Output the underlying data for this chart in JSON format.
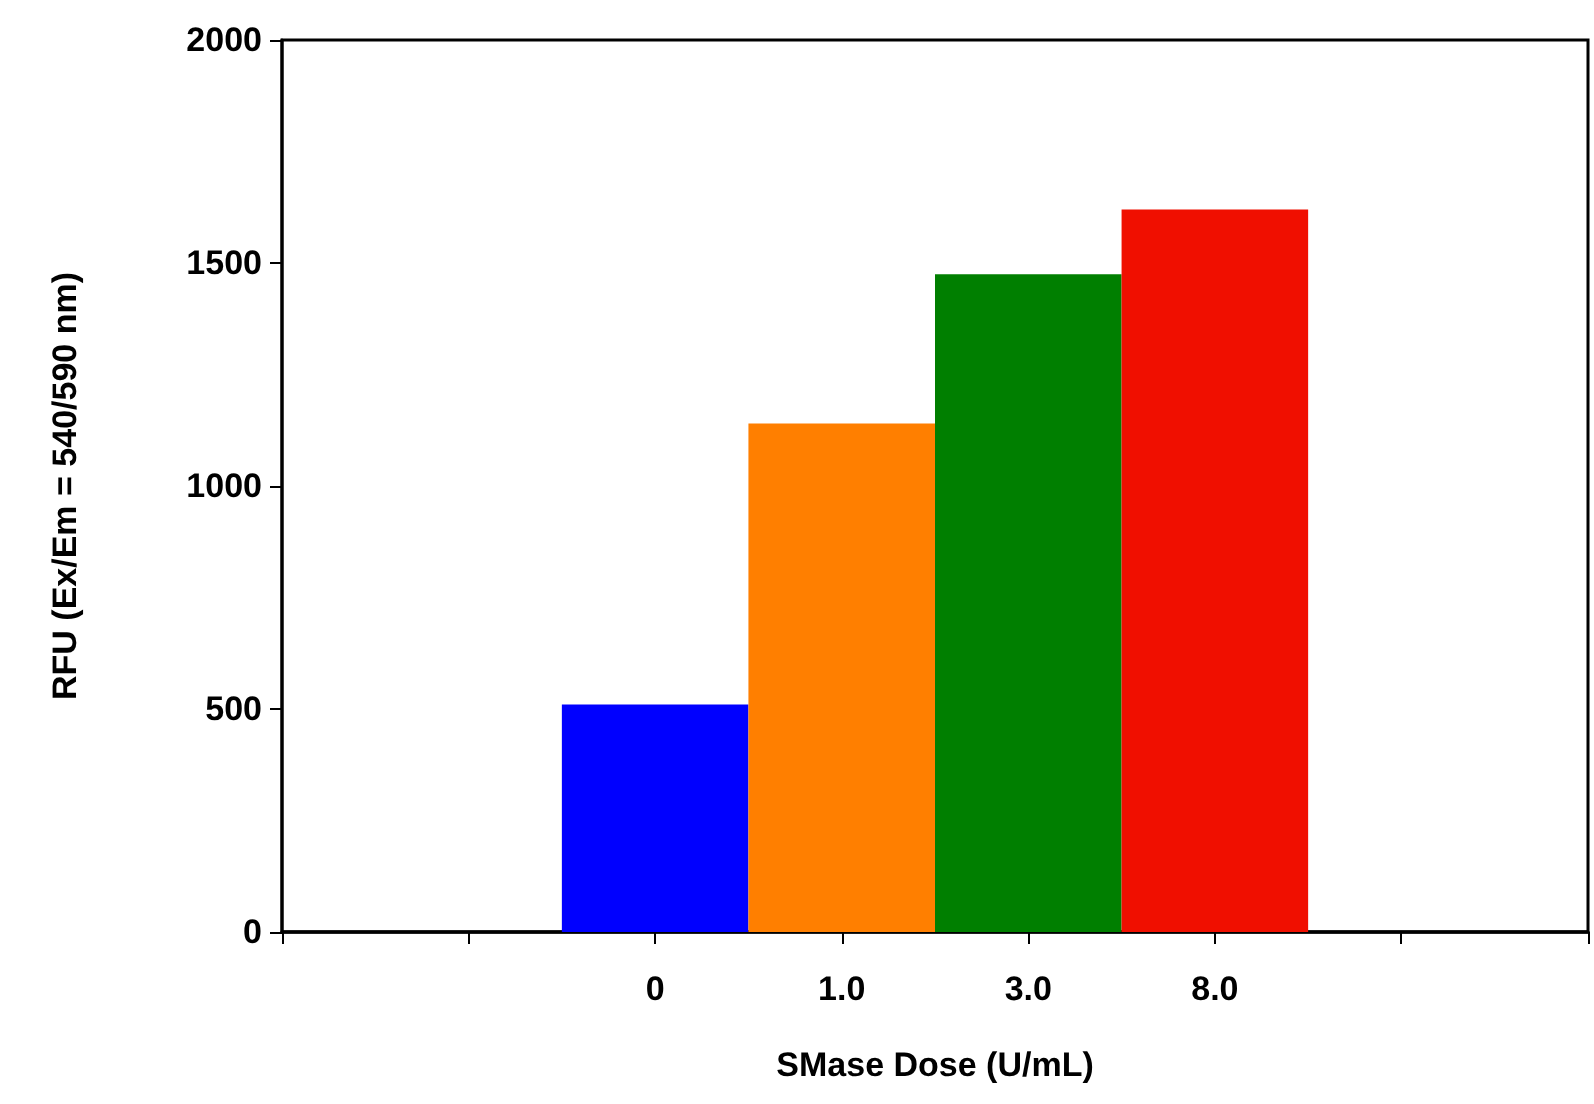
{
  "chart_data": {
    "type": "bar",
    "xlabel": "SMase Dose (U/mL)",
    "ylabel": "RFU (Ex/Em = 540/590 nm)",
    "categories": [
      null,
      null,
      "0",
      "1.0",
      "3.0",
      "8.0",
      null,
      null
    ],
    "values": [
      null,
      null,
      510,
      1140,
      1475,
      1620,
      null,
      null
    ],
    "colors": [
      "#0000ff",
      "#0000ff",
      "#0000ff",
      "#ff7f00",
      "#007f00",
      "#f00f00",
      "#f00f00",
      "#f00f00"
    ],
    "ylim": [
      0,
      2000
    ],
    "yticks": [
      0,
      500,
      1000,
      1500,
      2000
    ]
  }
}
